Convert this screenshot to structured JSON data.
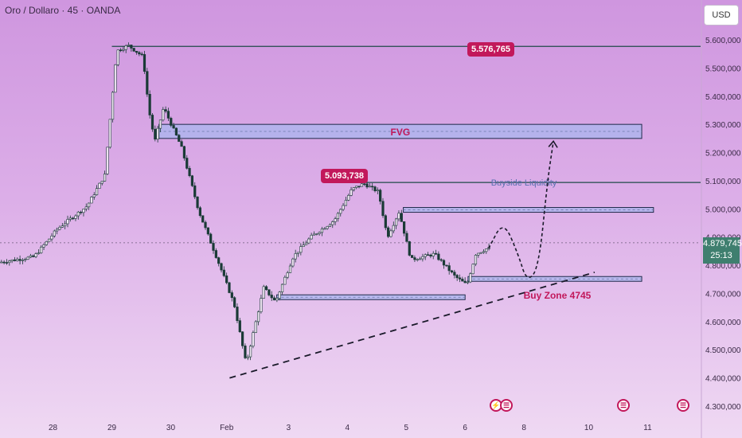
{
  "header": {
    "symbol_line": "Oro / Dollaro · 45 · OANDA",
    "currency_button": "USD"
  },
  "current_price": {
    "value": "4.879,745",
    "countdown": "25:13"
  },
  "colors": {
    "candle": "#1a3a36",
    "level_line": "#1f4a48",
    "zone_fill": "#a9b6ee",
    "zone_stroke": "#1f2a4a",
    "accent": "#c2185b",
    "current_price_bg": "#3f7f6f"
  },
  "chart_data": {
    "type": "candlestick",
    "title": "",
    "xlabel": "",
    "ylabel": "",
    "ylim": [
      4300000,
      5650000
    ],
    "y_ticks": [
      "5.600,000",
      "5.500,000",
      "5.400,000",
      "5.300,000",
      "5.200,000",
      "5.100,000",
      "5.000,000",
      "4.900,000",
      "4.800,000",
      "4.700,000",
      "4.600,000",
      "4.500,000",
      "4.400,000",
      "4.300,000"
    ],
    "y_tick_values": [
      5600000,
      5500000,
      5400000,
      5300000,
      5200000,
      5100000,
      5000000,
      4900000,
      4800000,
      4700000,
      4600000,
      4500000,
      4400000,
      4300000
    ],
    "x_ticks": [
      {
        "label": "28",
        "t": 0.9
      },
      {
        "label": "29",
        "t": 1.9
      },
      {
        "label": "30",
        "t": 2.9
      },
      {
        "label": "Feb",
        "t": 3.85
      },
      {
        "label": "3",
        "t": 4.9
      },
      {
        "label": "4",
        "t": 5.9
      },
      {
        "label": "5",
        "t": 6.9
      },
      {
        "label": "6",
        "t": 7.9
      },
      {
        "label": "8",
        "t": 8.9
      },
      {
        "label": "10",
        "t": 10.0
      },
      {
        "label": "11",
        "t": 11.0
      }
    ],
    "t_range": [
      0,
      11.9
    ],
    "price_path": [
      [
        0.0,
        4810000
      ],
      [
        0.6,
        4830000
      ],
      [
        1.0,
        4930000
      ],
      [
        1.5,
        5010000
      ],
      [
        1.8,
        5120000
      ],
      [
        2.0,
        5560000
      ],
      [
        2.2,
        5580000
      ],
      [
        2.45,
        5540000
      ],
      [
        2.55,
        5350000
      ],
      [
        2.65,
        5240000
      ],
      [
        2.8,
        5360000
      ],
      [
        3.1,
        5220000
      ],
      [
        3.4,
        4990000
      ],
      [
        3.75,
        4800000
      ],
      [
        4.0,
        4660000
      ],
      [
        4.2,
        4450000
      ],
      [
        4.5,
        4720000
      ],
      [
        4.7,
        4670000
      ],
      [
        5.0,
        4830000
      ],
      [
        5.3,
        4900000
      ],
      [
        5.7,
        4960000
      ],
      [
        6.0,
        5070000
      ],
      [
        6.2,
        5090000
      ],
      [
        6.45,
        5060000
      ],
      [
        6.6,
        4900000
      ],
      [
        6.8,
        4990000
      ],
      [
        7.0,
        4820000
      ],
      [
        7.4,
        4840000
      ],
      [
        7.75,
        4760000
      ],
      [
        7.95,
        4730000
      ],
      [
        8.1,
        4840000
      ],
      [
        8.3,
        4860000
      ]
    ],
    "levels": [
      {
        "name": "high-level",
        "value": 5576765,
        "label": "5.576,765",
        "t_start": 1.9,
        "t_end": 11.9
      },
      {
        "name": "buyside-liquidity",
        "value": 5093738,
        "label": "5.093,738",
        "t_start": 6.05,
        "t_end": 11.9,
        "text": "Buyside Liquidity"
      }
    ],
    "zones": [
      {
        "name": "fvg-zone",
        "label": "FVG",
        "t_start": 2.7,
        "t_end": 10.9,
        "top": 5300000,
        "bottom": 5250000
      },
      {
        "name": "resistance-zone",
        "label": "",
        "t_start": 6.85,
        "t_end": 11.1,
        "top": 5005000,
        "bottom": 4988000
      },
      {
        "name": "buy-zone",
        "label": "Buy Zone 4745",
        "t_start": 7.95,
        "t_end": 10.9,
        "top": 4760000,
        "bottom": 4744000
      },
      {
        "name": "support-zone",
        "label": "",
        "t_start": 4.7,
        "t_end": 7.9,
        "top": 4695000,
        "bottom": 4680000
      }
    ],
    "trendline": [
      [
        3.9,
        4400000
      ],
      [
        10.1,
        4775000
      ]
    ],
    "projection": [
      [
        8.3,
        4860000
      ],
      [
        8.55,
        4960000
      ],
      [
        8.8,
        4840000
      ],
      [
        8.95,
        4740000
      ],
      [
        9.15,
        4790000
      ],
      [
        9.3,
        5100000
      ],
      [
        9.4,
        5240000
      ]
    ],
    "current_price_value": 4879745,
    "event_markers": [
      8.4,
      10.5,
      11.5
    ]
  }
}
